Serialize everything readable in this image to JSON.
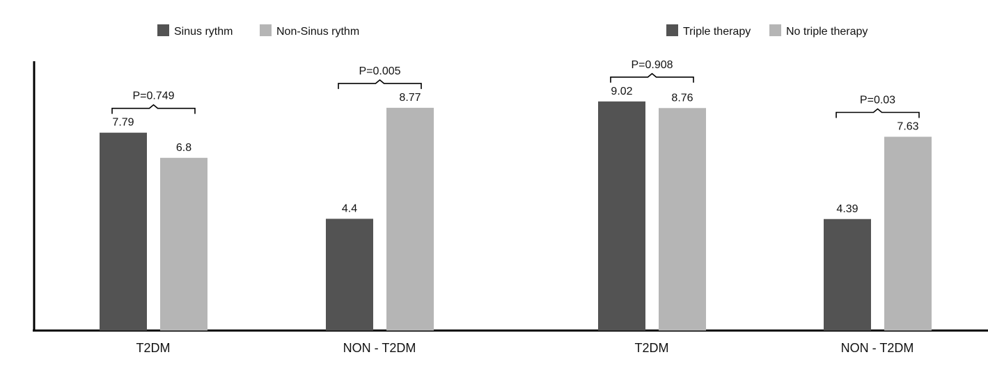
{
  "colors": {
    "dark": "#535353",
    "light": "#b5b5b5",
    "axis": "#000000",
    "text": "#111111",
    "background": "#ffffff"
  },
  "chart_data": [
    {
      "type": "bar",
      "title": "",
      "xlabel": "",
      "ylabel": "",
      "ylim": [
        0,
        10
      ],
      "grid": false,
      "legend_position": "top",
      "legend": [
        "Sinus rythm",
        "Non-Sinus rythm"
      ],
      "categories": [
        "T2DM",
        "NON - T2DM"
      ],
      "series": [
        {
          "name": "Sinus rythm",
          "color": "#535353",
          "values": [
            7.79,
            4.4
          ],
          "labels": [
            "7.79",
            "4.4"
          ]
        },
        {
          "name": "Non-Sinus rythm",
          "color": "#b5b5b5",
          "values": [
            6.8,
            8.77
          ],
          "labels": [
            "6.8",
            "8.77"
          ]
        }
      ],
      "annotations": [
        "P=0.749",
        "P=0.005"
      ]
    },
    {
      "type": "bar",
      "title": "",
      "xlabel": "",
      "ylabel": "",
      "ylim": [
        0,
        10
      ],
      "grid": false,
      "legend_position": "top",
      "legend": [
        "Triple therapy",
        "No triple therapy"
      ],
      "categories": [
        "T2DM",
        "NON - T2DM"
      ],
      "series": [
        {
          "name": "Triple therapy",
          "color": "#535353",
          "values": [
            9.02,
            4.39
          ],
          "labels": [
            "9.02",
            "4.39"
          ]
        },
        {
          "name": "No triple therapy",
          "color": "#b5b5b5",
          "values": [
            8.76,
            7.63
          ],
          "labels": [
            "8.76",
            "7.63"
          ]
        }
      ],
      "annotations": [
        "P=0.908",
        "P=0.03"
      ]
    }
  ]
}
